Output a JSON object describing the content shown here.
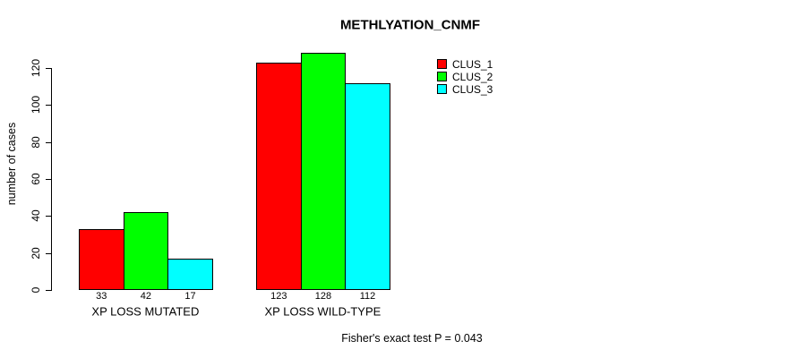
{
  "title": "METHLYATION_CNMF",
  "y_axis": {
    "label": "number of cases",
    "ticks": [
      0,
      20,
      40,
      60,
      80,
      100,
      120
    ]
  },
  "footer": "Fisher's exact test P = 0.043",
  "legend": {
    "items": [
      {
        "label": "CLUS_1",
        "color": "#ff0000"
      },
      {
        "label": "CLUS_2",
        "color": "#00ff00"
      },
      {
        "label": "CLUS_3",
        "color": "#00ffff"
      }
    ]
  },
  "chart_data": {
    "type": "bar",
    "title": "METHLYATION_CNMF",
    "ylabel": "number of cases",
    "xlabel": "",
    "categories": [
      "XP LOSS MUTATED",
      "XP LOSS WILD-TYPE"
    ],
    "series": [
      {
        "name": "CLUS_1",
        "color": "#ff0000",
        "values": [
          33,
          123
        ]
      },
      {
        "name": "CLUS_2",
        "color": "#00ff00",
        "values": [
          42,
          128
        ]
      },
      {
        "name": "CLUS_3",
        "color": "#00ffff",
        "values": [
          17,
          112
        ]
      }
    ],
    "yticks": [
      0,
      20,
      40,
      60,
      80,
      100,
      120
    ],
    "ylim": [
      0,
      130
    ],
    "grid": false,
    "show_bar_values": true,
    "legend_position": "top-right",
    "annotation": "Fisher's exact test P = 0.043"
  }
}
